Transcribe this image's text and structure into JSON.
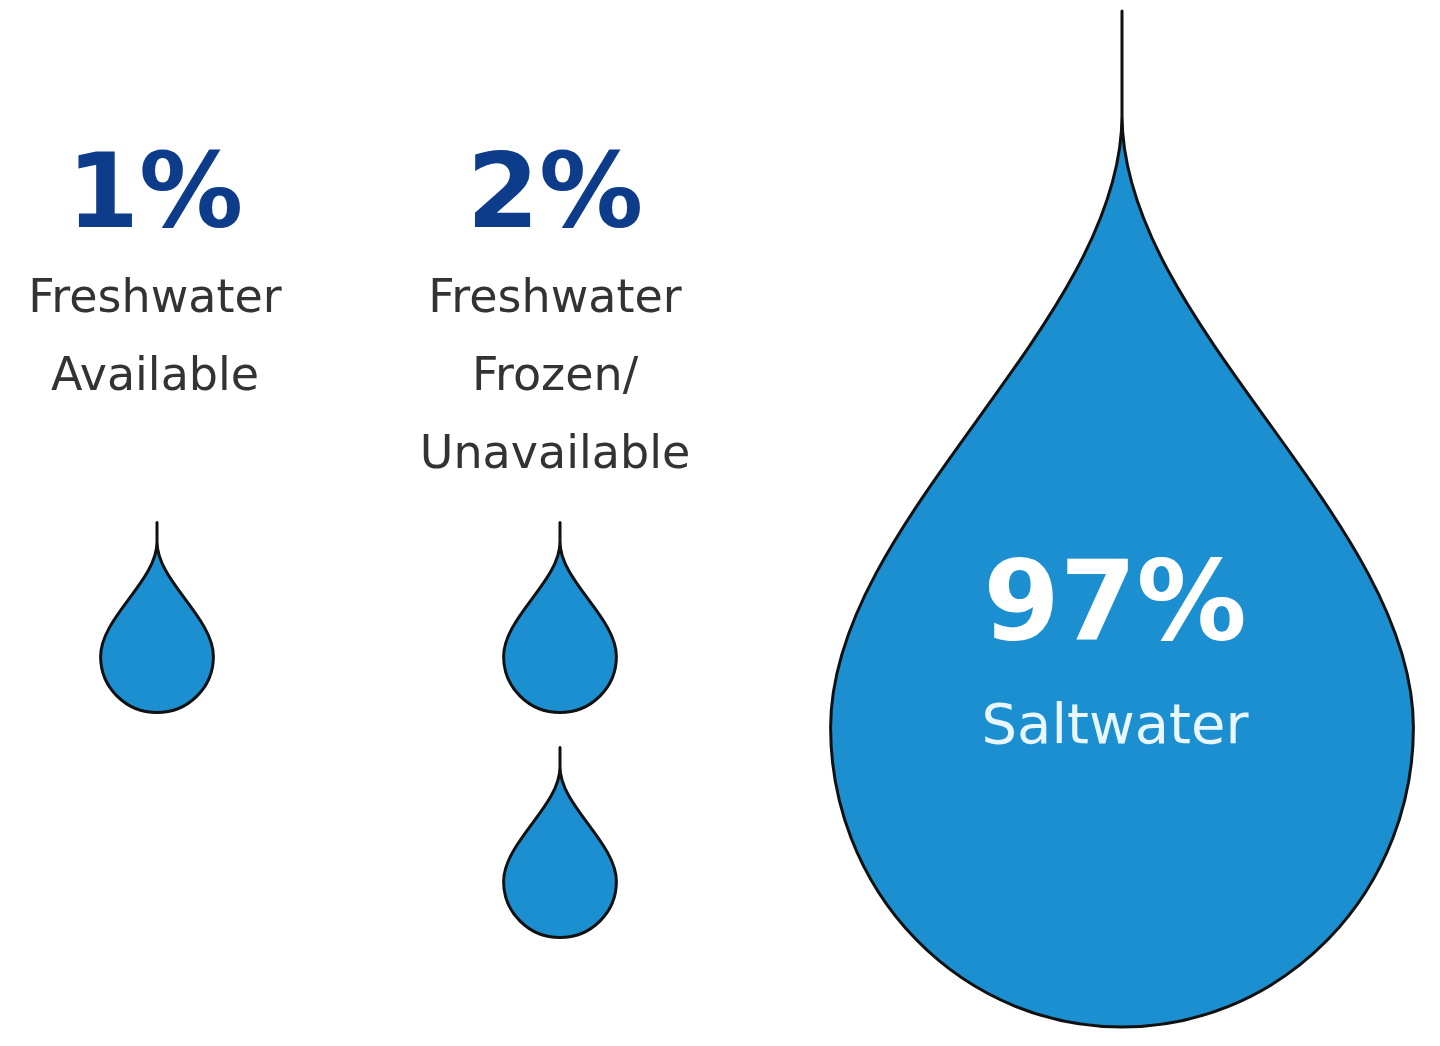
{
  "chart_data": {
    "type": "other",
    "categories": [
      "Freshwater Available",
      "Freshwater Frozen/ Unavailable",
      "Saltwater"
    ],
    "values": [
      1,
      2,
      97
    ],
    "value_labels": [
      "1%",
      "2%",
      "97%"
    ]
  }
}
